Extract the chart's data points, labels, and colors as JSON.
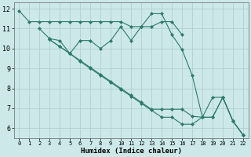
{
  "xlabel": "Humidex (Indice chaleur)",
  "bg_color": "#cce8e8",
  "grid_color": "#aacccc",
  "line_color": "#2d7a6a",
  "xlim": [
    -0.5,
    22.5
  ],
  "ylim": [
    5.5,
    12.3
  ],
  "yticks": [
    6,
    7,
    8,
    9,
    10,
    11,
    12
  ],
  "xticks": [
    0,
    1,
    2,
    3,
    4,
    5,
    6,
    7,
    8,
    9,
    10,
    11,
    12,
    13,
    14,
    15,
    16,
    17,
    18,
    19,
    20,
    21,
    22
  ],
  "series": [
    {
      "x": [
        0,
        1,
        2,
        3,
        4,
        5,
        6,
        7,
        8,
        9,
        10,
        11,
        12,
        13,
        14,
        15,
        16
      ],
      "y": [
        11.9,
        11.35,
        11.35,
        11.35,
        11.35,
        11.35,
        11.35,
        11.35,
        11.35,
        11.35,
        11.35,
        11.1,
        11.1,
        11.1,
        11.35,
        11.35,
        10.7
      ],
      "marker": "D",
      "markersize": 2,
      "linewidth": 0.8
    },
    {
      "x": [
        2,
        3,
        4,
        5,
        6,
        7,
        8,
        9,
        10,
        11,
        12,
        13,
        14,
        15,
        16,
        17,
        18,
        19,
        20,
        21,
        22
      ],
      "y": [
        11.0,
        10.5,
        10.4,
        9.75,
        10.4,
        10.4,
        10.0,
        10.4,
        11.1,
        10.4,
        11.1,
        11.75,
        11.75,
        10.7,
        9.95,
        8.65,
        6.55,
        7.55,
        7.55,
        6.35,
        5.65
      ],
      "marker": "D",
      "markersize": 2,
      "linewidth": 0.8
    },
    {
      "x": [
        3,
        4,
        5,
        6,
        7,
        8,
        9,
        10,
        11,
        12,
        13,
        14,
        15,
        16,
        17,
        18,
        19,
        20,
        21,
        22
      ],
      "y": [
        10.45,
        10.1,
        9.75,
        9.4,
        9.05,
        8.7,
        8.35,
        8.0,
        7.65,
        7.3,
        6.95,
        6.95,
        6.95,
        6.95,
        6.6,
        6.55,
        6.55,
        7.55,
        6.35,
        5.65
      ],
      "marker": "D",
      "markersize": 2,
      "linewidth": 0.8
    },
    {
      "x": [
        3,
        4,
        5,
        6,
        7,
        8,
        9,
        10,
        11,
        12,
        13,
        14,
        15,
        16,
        17,
        18,
        19,
        20,
        21,
        22
      ],
      "y": [
        10.45,
        10.1,
        9.75,
        9.35,
        9.0,
        8.65,
        8.3,
        7.95,
        7.6,
        7.25,
        6.9,
        6.55,
        6.55,
        6.2,
        6.2,
        6.55,
        6.55,
        7.55,
        6.35,
        5.65
      ],
      "marker": "D",
      "markersize": 2,
      "linewidth": 0.8
    }
  ]
}
